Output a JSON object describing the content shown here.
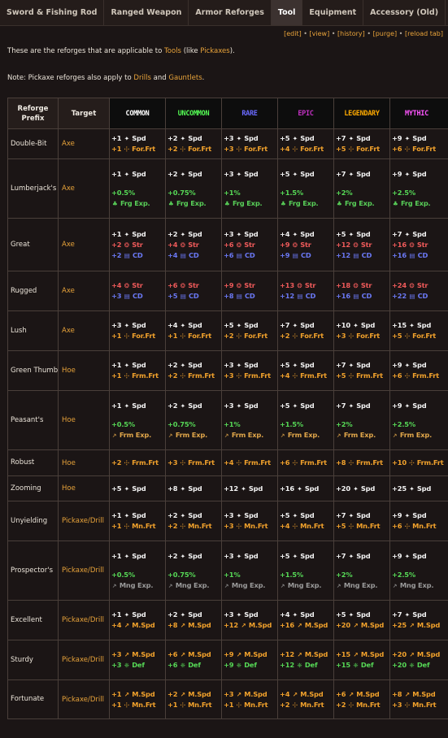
{
  "tabs": [
    {
      "label": "Sword & Fishing Rod",
      "active": false
    },
    {
      "label": "Ranged Weapon",
      "active": false
    },
    {
      "label": "Armor Reforges",
      "active": false
    },
    {
      "label": "Tool",
      "active": true
    },
    {
      "label": "Equipment",
      "active": false
    },
    {
      "label": "Accessory (Old)",
      "active": false
    }
  ],
  "toolbar": {
    "edit": "[edit]",
    "view": "[view]",
    "history": "[history]",
    "purge": "[purge]",
    "reload": "[reload tab]",
    "sep": " • "
  },
  "intro": {
    "pre": "These are the reforges that are applicable to ",
    "tools": "Tools",
    "mid": " (like ",
    "pickaxes": "Pickaxes",
    "post": ")."
  },
  "note": {
    "pre": "Note: Pickaxe reforges also apply to ",
    "drills": "Drills",
    "and": " and ",
    "gauntlets": "Gauntlets",
    "post": "."
  },
  "colors": {
    "common": "#ffffff",
    "uncommon": "#55ff55",
    "rare": "#5555ff",
    "epic": "#aa00aa",
    "legendary": "#ffaa00",
    "mythic": "#ff55ff",
    "link": "#e8a33a"
  },
  "table": {
    "headers": {
      "prefix": "Reforge Prefix",
      "target": "Target"
    },
    "rarities": [
      "COMMON",
      "UNCOMMON",
      "RARE",
      "EPIC",
      "LEGENDARY",
      "MYTHIC"
    ],
    "rows": [
      {
        "prefix": "Double-Bit",
        "target": "Axe",
        "cells": [
          [
            [
              "+1",
              "Spd"
            ],
            [
              "+1",
              "For.Frt"
            ]
          ],
          [
            [
              "+2",
              "Spd"
            ],
            [
              "+2",
              "For.Frt"
            ]
          ],
          [
            [
              "+3",
              "Spd"
            ],
            [
              "+3",
              "For.Frt"
            ]
          ],
          [
            [
              "+5",
              "Spd"
            ],
            [
              "+4",
              "For.Frt"
            ]
          ],
          [
            [
              "+7",
              "Spd"
            ],
            [
              "+5",
              "For.Frt"
            ]
          ],
          [
            [
              "+9",
              "Spd"
            ],
            [
              "+6",
              "For.Frt"
            ]
          ]
        ]
      },
      {
        "prefix": "Lumberjack's",
        "target": "Axe",
        "cells": [
          [
            [
              "+1",
              "Spd"
            ],
            [
              "gap"
            ],
            [
              "+0.5%",
              ""
            ],
            [
              "",
              "Frg Exp."
            ]
          ],
          [
            [
              "+2",
              "Spd"
            ],
            [
              "gap"
            ],
            [
              "+0.75%",
              ""
            ],
            [
              "",
              "Frg Exp."
            ]
          ],
          [
            [
              "+3",
              "Spd"
            ],
            [
              "gap"
            ],
            [
              "+1%",
              ""
            ],
            [
              "",
              "Frg Exp."
            ]
          ],
          [
            [
              "+5",
              "Spd"
            ],
            [
              "gap"
            ],
            [
              "+1.5%",
              ""
            ],
            [
              "",
              "Frg Exp."
            ]
          ],
          [
            [
              "+7",
              "Spd"
            ],
            [
              "gap"
            ],
            [
              "+2%",
              ""
            ],
            [
              "",
              "Frg Exp."
            ]
          ],
          [
            [
              "+9",
              "Spd"
            ],
            [
              "gap"
            ],
            [
              "+2.5%",
              ""
            ],
            [
              "",
              "Frg Exp."
            ]
          ]
        ]
      },
      {
        "prefix": "Great",
        "target": "Axe",
        "cells": [
          [
            [
              "+1",
              "Spd"
            ],
            [
              "+2",
              "Str"
            ],
            [
              "+2",
              "CD"
            ]
          ],
          [
            [
              "+2",
              "Spd"
            ],
            [
              "+4",
              "Str"
            ],
            [
              "+4",
              "CD"
            ]
          ],
          [
            [
              "+3",
              "Spd"
            ],
            [
              "+6",
              "Str"
            ],
            [
              "+6",
              "CD"
            ]
          ],
          [
            [
              "+4",
              "Spd"
            ],
            [
              "+9",
              "Str"
            ],
            [
              "+9",
              "CD"
            ]
          ],
          [
            [
              "+5",
              "Spd"
            ],
            [
              "+12",
              "Str"
            ],
            [
              "+12",
              "CD"
            ]
          ],
          [
            [
              "+7",
              "Spd"
            ],
            [
              "+16",
              "Str"
            ],
            [
              "+16",
              "CD"
            ]
          ]
        ]
      },
      {
        "prefix": "Rugged",
        "target": "Axe",
        "cells": [
          [
            [
              "+4",
              "Str"
            ],
            [
              "+3",
              "CD"
            ]
          ],
          [
            [
              "+6",
              "Str"
            ],
            [
              "+5",
              "CD"
            ]
          ],
          [
            [
              "+9",
              "Str"
            ],
            [
              "+8",
              "CD"
            ]
          ],
          [
            [
              "+13",
              "Str"
            ],
            [
              "+12",
              "CD"
            ]
          ],
          [
            [
              "+18",
              "Str"
            ],
            [
              "+16",
              "CD"
            ]
          ],
          [
            [
              "+24",
              "Str"
            ],
            [
              "+22",
              "CD"
            ]
          ]
        ]
      },
      {
        "prefix": "Lush",
        "target": "Axe",
        "cells": [
          [
            [
              "+3",
              "Spd"
            ],
            [
              "+1",
              "For.Frt"
            ]
          ],
          [
            [
              "+4",
              "Spd"
            ],
            [
              "+1",
              "For.Frt"
            ]
          ],
          [
            [
              "+5",
              "Spd"
            ],
            [
              "+2",
              "For.Frt"
            ]
          ],
          [
            [
              "+7",
              "Spd"
            ],
            [
              "+2",
              "For.Frt"
            ]
          ],
          [
            [
              "+10",
              "Spd"
            ],
            [
              "+3",
              "For.Frt"
            ]
          ],
          [
            [
              "+15",
              "Spd"
            ],
            [
              "+5",
              "For.Frt"
            ]
          ]
        ]
      },
      {
        "prefix": "Green Thumb",
        "target": "Hoe",
        "cells": [
          [
            [
              "+1",
              "Spd"
            ],
            [
              "+1",
              "Frm.Frt"
            ]
          ],
          [
            [
              "+2",
              "Spd"
            ],
            [
              "+2",
              "Frm.Frt"
            ]
          ],
          [
            [
              "+3",
              "Spd"
            ],
            [
              "+3",
              "Frm.Frt"
            ]
          ],
          [
            [
              "+5",
              "Spd"
            ],
            [
              "+4",
              "Frm.Frt"
            ]
          ],
          [
            [
              "+7",
              "Spd"
            ],
            [
              "+5",
              "Frm.Frt"
            ]
          ],
          [
            [
              "+9",
              "Spd"
            ],
            [
              "+6",
              "Frm.Frt"
            ]
          ]
        ]
      },
      {
        "prefix": "Peasant's",
        "target": "Hoe",
        "cells": [
          [
            [
              "+1",
              "Spd"
            ],
            [
              "gap"
            ],
            [
              "+0.5%",
              ""
            ],
            [
              "",
              "Frm Exp."
            ]
          ],
          [
            [
              "+2",
              "Spd"
            ],
            [
              "gap"
            ],
            [
              "+0.75%",
              ""
            ],
            [
              "",
              "Frm Exp."
            ]
          ],
          [
            [
              "+3",
              "Spd"
            ],
            [
              "gap"
            ],
            [
              "+1%",
              ""
            ],
            [
              "",
              "Frm Exp."
            ]
          ],
          [
            [
              "+5",
              "Spd"
            ],
            [
              "gap"
            ],
            [
              "+1.5%",
              ""
            ],
            [
              "",
              "Frm Exp."
            ]
          ],
          [
            [
              "+7",
              "Spd"
            ],
            [
              "gap"
            ],
            [
              "+2%",
              ""
            ],
            [
              "",
              "Frm Exp."
            ]
          ],
          [
            [
              "+9",
              "Spd"
            ],
            [
              "gap"
            ],
            [
              "+2.5%",
              ""
            ],
            [
              "",
              "Frm Exp."
            ]
          ]
        ]
      },
      {
        "prefix": "Robust",
        "target": "Hoe",
        "cells": [
          [
            [
              "+2",
              "Frm.Frt"
            ]
          ],
          [
            [
              "+3",
              "Frm.Frt"
            ]
          ],
          [
            [
              "+4",
              "Frm.Frt"
            ]
          ],
          [
            [
              "+6",
              "Frm.Frt"
            ]
          ],
          [
            [
              "+8",
              "Frm.Frt"
            ]
          ],
          [
            [
              "+10",
              "Frm.Frt"
            ]
          ]
        ]
      },
      {
        "prefix": "Zooming",
        "target": "Hoe",
        "cells": [
          [
            [
              "+5",
              "Spd"
            ]
          ],
          [
            [
              "+8",
              "Spd"
            ]
          ],
          [
            [
              "+12",
              "Spd"
            ]
          ],
          [
            [
              "+16",
              "Spd"
            ]
          ],
          [
            [
              "+20",
              "Spd"
            ]
          ],
          [
            [
              "+25",
              "Spd"
            ]
          ]
        ]
      },
      {
        "prefix": "Unyielding",
        "target": "Pickaxe/Drill",
        "cells": [
          [
            [
              "+1",
              "Spd"
            ],
            [
              "+1",
              "Mn.Frt"
            ]
          ],
          [
            [
              "+2",
              "Spd"
            ],
            [
              "+2",
              "Mn.Frt"
            ]
          ],
          [
            [
              "+3",
              "Spd"
            ],
            [
              "+3",
              "Mn.Frt"
            ]
          ],
          [
            [
              "+5",
              "Spd"
            ],
            [
              "+4",
              "Mn.Frt"
            ]
          ],
          [
            [
              "+7",
              "Spd"
            ],
            [
              "+5",
              "Mn.Frt"
            ]
          ],
          [
            [
              "+9",
              "Spd"
            ],
            [
              "+6",
              "Mn.Frt"
            ]
          ]
        ]
      },
      {
        "prefix": "Prospector's",
        "target": "Pickaxe/Drill",
        "cells": [
          [
            [
              "+1",
              "Spd"
            ],
            [
              "gap"
            ],
            [
              "+0.5%",
              ""
            ],
            [
              "",
              "Mng Exp."
            ]
          ],
          [
            [
              "+2",
              "Spd"
            ],
            [
              "gap"
            ],
            [
              "+0.75%",
              ""
            ],
            [
              "",
              "Mng Exp."
            ]
          ],
          [
            [
              "+3",
              "Spd"
            ],
            [
              "gap"
            ],
            [
              "+1%",
              ""
            ],
            [
              "",
              "Mng Exp."
            ]
          ],
          [
            [
              "+5",
              "Spd"
            ],
            [
              "gap"
            ],
            [
              "+1.5%",
              ""
            ],
            [
              "",
              "Mng Exp."
            ]
          ],
          [
            [
              "+7",
              "Spd"
            ],
            [
              "gap"
            ],
            [
              "+2%",
              ""
            ],
            [
              "",
              "Mng Exp."
            ]
          ],
          [
            [
              "+9",
              "Spd"
            ],
            [
              "gap"
            ],
            [
              "+2.5%",
              ""
            ],
            [
              "",
              "Mng Exp."
            ]
          ]
        ]
      },
      {
        "prefix": "Excellent",
        "target": "Pickaxe/Drill",
        "cells": [
          [
            [
              "+1",
              "Spd"
            ],
            [
              "+4",
              "M.Spd"
            ]
          ],
          [
            [
              "+2",
              "Spd"
            ],
            [
              "+8",
              "M.Spd"
            ]
          ],
          [
            [
              "+3",
              "Spd"
            ],
            [
              "+12",
              "M.Spd"
            ]
          ],
          [
            [
              "+4",
              "Spd"
            ],
            [
              "+16",
              "M.Spd"
            ]
          ],
          [
            [
              "+5",
              "Spd"
            ],
            [
              "+20",
              "M.Spd"
            ]
          ],
          [
            [
              "+7",
              "Spd"
            ],
            [
              "+25",
              "M.Spd"
            ]
          ]
        ]
      },
      {
        "prefix": "Sturdy",
        "target": "Pickaxe/Drill",
        "cells": [
          [
            [
              "+3",
              "M.Spd"
            ],
            [
              "+3",
              "Def"
            ]
          ],
          [
            [
              "+6",
              "M.Spd"
            ],
            [
              "+6",
              "Def"
            ]
          ],
          [
            [
              "+9",
              "M.Spd"
            ],
            [
              "+9",
              "Def"
            ]
          ],
          [
            [
              "+12",
              "M.Spd"
            ],
            [
              "+12",
              "Def"
            ]
          ],
          [
            [
              "+15",
              "M.Spd"
            ],
            [
              "+15",
              "Def"
            ]
          ],
          [
            [
              "+20",
              "M.Spd"
            ],
            [
              "+20",
              "Def"
            ]
          ]
        ]
      },
      {
        "prefix": "Fortunate",
        "target": "Pickaxe/Drill",
        "cells": [
          [
            [
              "+1",
              "M.Spd"
            ],
            [
              "+1",
              "Mn.Frt"
            ]
          ],
          [
            [
              "+2",
              "M.Spd"
            ],
            [
              "+1",
              "Mn.Frt"
            ]
          ],
          [
            [
              "+3",
              "M.Spd"
            ],
            [
              "+1",
              "Mn.Frt"
            ]
          ],
          [
            [
              "+4",
              "M.Spd"
            ],
            [
              "+2",
              "Mn.Frt"
            ]
          ],
          [
            [
              "+6",
              "M.Spd"
            ],
            [
              "+2",
              "Mn.Frt"
            ]
          ],
          [
            [
              "+8",
              "M.Spd"
            ],
            [
              "+3",
              "Mn.Frt"
            ]
          ]
        ]
      }
    ]
  }
}
